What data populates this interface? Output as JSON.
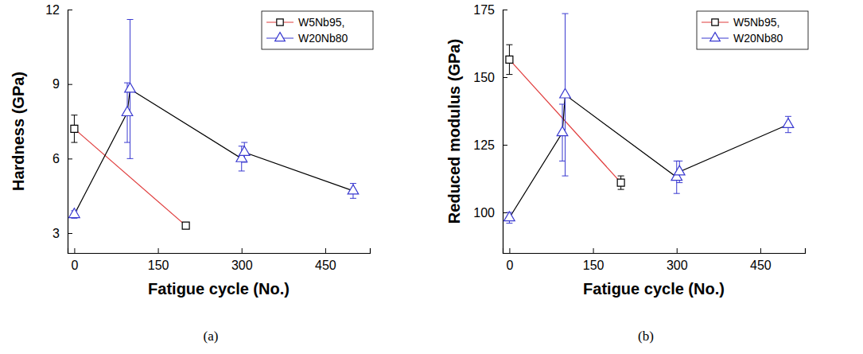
{
  "chart_data": [
    {
      "type": "line",
      "caption": "(a)",
      "xlabel": "Fatigue cycle (No.)",
      "ylabel": "Hardness (GPa)",
      "xlim": [
        -12,
        530
      ],
      "xticks": [
        0,
        150,
        300,
        450
      ],
      "ylim": [
        2.2,
        12
      ],
      "yticks": [
        3,
        6,
        9,
        12
      ],
      "legend": "upper right",
      "series": [
        {
          "name": "W5Nb95,",
          "color": "#e03c3c",
          "marker": "square",
          "x": [
            0,
            200
          ],
          "values": [
            7.2,
            3.3
          ],
          "errors": [
            0.55,
            0.1
          ]
        },
        {
          "name": "W20Nb80",
          "color": "#000000",
          "marker": "triangle",
          "x": [
            0,
            95,
            100,
            300,
            305,
            500
          ],
          "values": [
            3.75,
            7.85,
            8.8,
            6.0,
            6.25,
            4.7
          ],
          "errors": [
            0.15,
            1.2,
            2.8,
            0.5,
            0.4,
            0.3
          ]
        }
      ]
    },
    {
      "type": "line",
      "caption": "(b)",
      "xlabel": "Fatigue cycle (No.)",
      "ylabel": "Reduced modulus (GPa)",
      "xlim": [
        -12,
        530
      ],
      "xticks": [
        0,
        150,
        300,
        450
      ],
      "ylim": [
        85,
        175
      ],
      "yticks": [
        100,
        125,
        150,
        175
      ],
      "legend": "upper right",
      "series": [
        {
          "name": "W5Nb95,",
          "color": "#e03c3c",
          "marker": "square",
          "x": [
            0,
            200
          ],
          "values": [
            156.5,
            111
          ],
          "errors": [
            5.5,
            2.5
          ]
        },
        {
          "name": "W20Nb80",
          "color": "#000000",
          "marker": "triangle",
          "x": [
            0,
            95,
            100,
            300,
            305,
            500
          ],
          "values": [
            98,
            129.5,
            143.5,
            113,
            115,
            132.5
          ],
          "errors": [
            2,
            10.5,
            30,
            6,
            4,
            3
          ]
        }
      ]
    }
  ]
}
